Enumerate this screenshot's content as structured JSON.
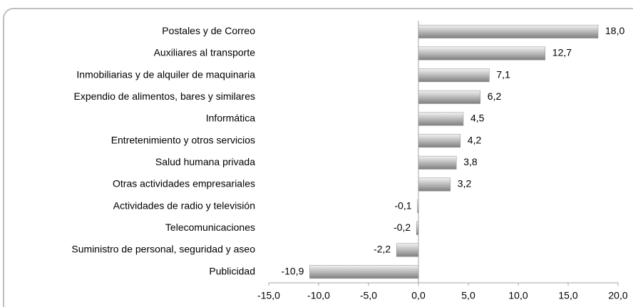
{
  "chart_data": {
    "type": "bar",
    "orientation": "horizontal",
    "categories": [
      "Postales y de Correo",
      "Auxiliares al transporte",
      "Inmobiliarias y de alquiler de maquinaria",
      "Expendio de alimentos, bares y similares",
      "Informática",
      "Entretenimiento y otros servicios",
      "Salud humana privada",
      "Otras actividades empresariales",
      "Actividades de radio y televisión",
      "Telecomunicaciones",
      "Suministro de personal, seguridad y aseo",
      "Publicidad"
    ],
    "values": [
      18.0,
      12.7,
      7.1,
      6.2,
      4.5,
      4.2,
      3.8,
      3.2,
      -0.1,
      -0.2,
      -2.2,
      -10.9
    ],
    "value_labels": [
      "18,0",
      "12,7",
      "7,1",
      "6,2",
      "4,5",
      "4,2",
      "3,8",
      "3,2",
      "-0,1",
      "-0,2",
      "-2,2",
      "-10,9"
    ],
    "color": "#a6a6a6",
    "xlim": [
      -15,
      20
    ],
    "xticks": [
      {
        "value": -15,
        "label": "-15,0"
      },
      {
        "value": -10,
        "label": "-10,0"
      },
      {
        "value": -5,
        "label": "-5,0"
      },
      {
        "value": 0,
        "label": "0,0"
      },
      {
        "value": 5,
        "label": "5,0"
      },
      {
        "value": 10,
        "label": "10,0"
      },
      {
        "value": 15,
        "label": "15,0"
      },
      {
        "value": 20,
        "label": "20,0"
      }
    ]
  }
}
